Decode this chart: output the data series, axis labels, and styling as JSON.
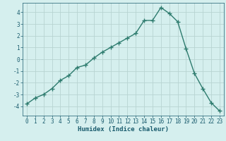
{
  "x": [
    0,
    1,
    2,
    3,
    4,
    5,
    6,
    7,
    8,
    9,
    10,
    11,
    12,
    13,
    14,
    15,
    16,
    17,
    18,
    19,
    20,
    21,
    22,
    23
  ],
  "y": [
    -3.8,
    -3.3,
    -3.0,
    -2.5,
    -1.8,
    -1.4,
    -0.7,
    -0.5,
    0.1,
    0.6,
    1.0,
    1.4,
    1.8,
    2.2,
    3.3,
    3.3,
    4.4,
    3.9,
    3.2,
    0.9,
    -1.2,
    -2.5,
    -3.7,
    -4.4
  ],
  "line_color": "#2d7b6e",
  "marker": "+",
  "bg_color": "#d5efee",
  "grid_color": "#b8d4d2",
  "xlabel": "Humidex (Indice chaleur)",
  "ylim": [
    -4.8,
    4.8
  ],
  "xlim": [
    -0.5,
    23.5
  ],
  "yticks": [
    -4,
    -3,
    -2,
    -1,
    0,
    1,
    2,
    3,
    4
  ],
  "xticks": [
    0,
    1,
    2,
    3,
    4,
    5,
    6,
    7,
    8,
    9,
    10,
    11,
    12,
    13,
    14,
    15,
    16,
    17,
    18,
    19,
    20,
    21,
    22,
    23
  ],
  "tick_color": "#1a5c6e",
  "tick_fontsize": 5.5,
  "xlabel_fontsize": 6.5,
  "xlabel_fontweight": "bold",
  "linewidth": 1.0,
  "markersize": 4,
  "markeredgewidth": 1.0
}
